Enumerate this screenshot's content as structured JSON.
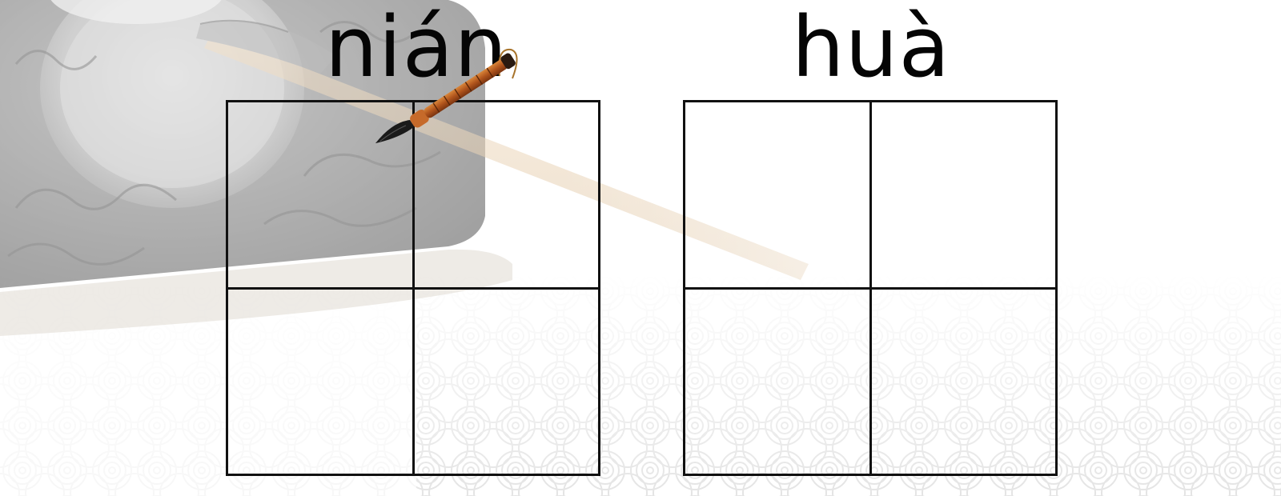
{
  "slide": {
    "background_color": "#ffffff",
    "decor": [
      "ink-stone",
      "calligraphy-brush",
      "cloud-pattern"
    ],
    "cells": [
      {
        "pinyin": "nián"
      },
      {
        "pinyin": "huà"
      }
    ]
  }
}
